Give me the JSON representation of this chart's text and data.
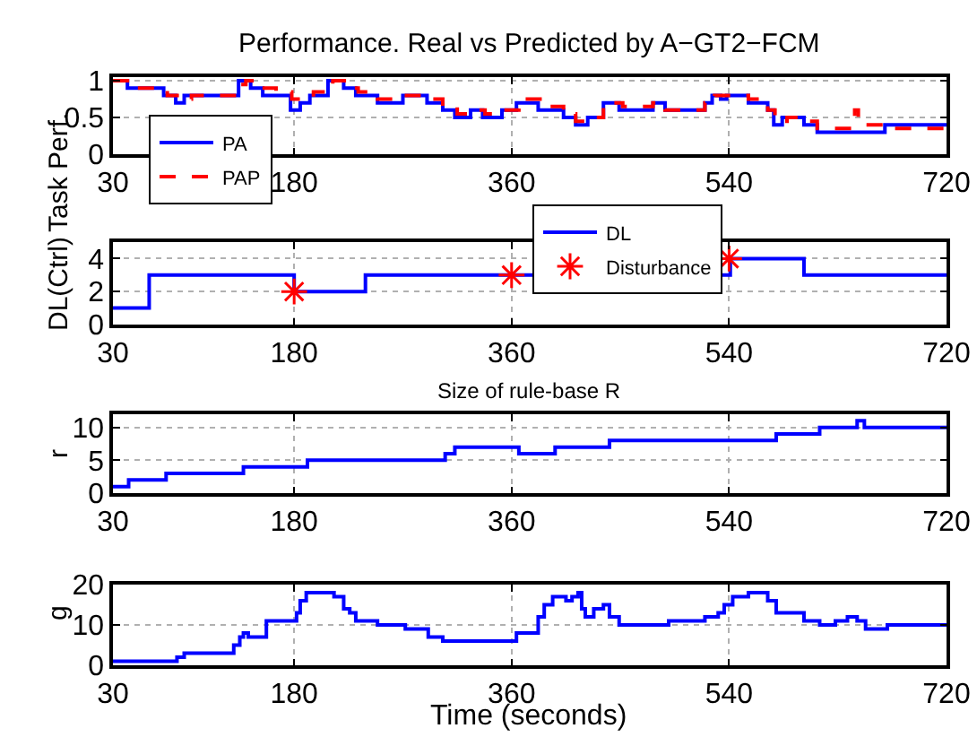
{
  "chart_data": [
    {
      "type": "step",
      "title": "Performance. Real vs Predicted by A−GT2−FCM",
      "ylabel": "Task Perf.",
      "xlim": [
        30,
        720
      ],
      "xticks": [
        30,
        180,
        360,
        540,
        720
      ],
      "ylim": [
        0,
        1.05
      ],
      "yticks": [
        0,
        0.5,
        1
      ],
      "grid": true,
      "legend": "bottom left",
      "series": [
        {
          "name": "PA",
          "color": "#0000ff",
          "line_style": "solid",
          "x": [
            30,
            42,
            72,
            82,
            89,
            134,
            144,
            154,
            177,
            185,
            193,
            208,
            221,
            231,
            249,
            270,
            290,
            303,
            313,
            326,
            336,
            352,
            364,
            382,
            403,
            413,
            423,
            436,
            449,
            477,
            487,
            520,
            526,
            533,
            538,
            556,
            572,
            577,
            584,
            602,
            613,
            669,
            720
          ],
          "values": [
            1,
            0.9,
            0.8,
            0.7,
            0.8,
            1,
            0.9,
            0.8,
            0.6,
            0.7,
            0.8,
            1,
            0.9,
            0.8,
            0.7,
            0.8,
            0.7,
            0.6,
            0.5,
            0.6,
            0.5,
            0.6,
            0.7,
            0.6,
            0.5,
            0.4,
            0.5,
            0.7,
            0.6,
            0.7,
            0.6,
            0.7,
            0.8,
            0.75,
            0.8,
            0.7,
            0.6,
            0.4,
            0.5,
            0.4,
            0.3,
            0.4,
            0.4
          ]
        },
        {
          "name": "PAP",
          "color": "#ff0000",
          "line_style": "dashed",
          "x": [
            30,
            42,
            75,
            88,
            95,
            132,
            140,
            147,
            165,
            178,
            196,
            212,
            224,
            233,
            249,
            270,
            292,
            303,
            315,
            328,
            338,
            352,
            366,
            385,
            403,
            413,
            425,
            436,
            452,
            477,
            487,
            520,
            528,
            556,
            572,
            578,
            588,
            602,
            613,
            640,
            644,
            647,
            669,
            720
          ],
          "values": [
            1,
            0.9,
            0.8,
            0.75,
            0.8,
            0.95,
            1,
            0.9,
            0.85,
            0.75,
            0.85,
            1,
            0.9,
            0.85,
            0.75,
            0.8,
            0.75,
            0.65,
            0.55,
            0.6,
            0.55,
            0.6,
            0.75,
            0.65,
            0.55,
            0.45,
            0.5,
            0.7,
            0.65,
            0.7,
            0.6,
            0.7,
            0.8,
            0.75,
            0.6,
            0.45,
            0.5,
            0.45,
            0.35,
            0.35,
            0.6,
            0.4,
            0.35,
            0.35
          ]
        }
      ]
    },
    {
      "type": "step",
      "ylabel": "DL(Ctrl)",
      "xlim": [
        30,
        720
      ],
      "xticks": [
        30,
        180,
        360,
        540,
        720
      ],
      "ylim": [
        0,
        5
      ],
      "yticks": [
        0,
        2,
        4
      ],
      "grid": true,
      "legend": "top",
      "series": [
        {
          "name": "DL",
          "color": "#0000ff",
          "x": [
            30,
            60,
            180,
            239,
            541,
            602,
            720
          ],
          "values": [
            1,
            3,
            2,
            3,
            4,
            3,
            3
          ]
        },
        {
          "name": "Disturbance",
          "type": "scatter",
          "marker": "cross",
          "color": "#ff0000",
          "x": [
            180,
            360,
            540
          ],
          "values": [
            2,
            3,
            4
          ]
        }
      ]
    },
    {
      "type": "step",
      "title": "Size of rule-base R",
      "ylabel": "r",
      "xlim": [
        30,
        720
      ],
      "xticks": [
        30,
        180,
        360,
        540,
        720
      ],
      "ylim": [
        0,
        12
      ],
      "yticks": [
        0,
        5,
        10
      ],
      "grid": true,
      "series": [
        {
          "color": "#0000ff",
          "x": [
            30,
            43,
            74,
            138,
            191,
            305,
            313,
            366,
            396,
            441,
            579,
            615,
            646,
            652,
            720
          ],
          "values": [
            1,
            2,
            3,
            4,
            5,
            6,
            7,
            6,
            7,
            8,
            9,
            10,
            11,
            10,
            10
          ]
        }
      ]
    },
    {
      "type": "step",
      "xlabel": "Time (seconds)",
      "ylabel": "g",
      "xlim": [
        30,
        720
      ],
      "xticks": [
        30,
        180,
        360,
        540,
        720
      ],
      "ylim": [
        0,
        20
      ],
      "yticks": [
        0,
        10,
        20
      ],
      "grid": true,
      "series": [
        {
          "color": "#0000ff",
          "x": [
            30,
            83,
            89,
            130,
            135,
            138,
            142,
            157,
            182,
            185,
            190,
            213,
            221,
            226,
            231,
            249,
            272,
            291,
            303,
            364,
            382,
            387,
            394,
            405,
            410,
            415,
            418,
            421,
            428,
            436,
            441,
            449,
            490,
            520,
            531,
            536,
            543,
            556,
            572,
            579,
            602,
            615,
            628,
            638,
            646,
            653,
            671,
            720
          ],
          "values": [
            1,
            2,
            3,
            5,
            7,
            8,
            7,
            11,
            13,
            16,
            18,
            17,
            14,
            13,
            11,
            10,
            9,
            7,
            6,
            8,
            12,
            15,
            17,
            16,
            17,
            18,
            14,
            12,
            14,
            15,
            12,
            10,
            11,
            12,
            13,
            15,
            17,
            18,
            16,
            13,
            11,
            10,
            11,
            12,
            11,
            9,
            10,
            10
          ]
        }
      ]
    }
  ]
}
